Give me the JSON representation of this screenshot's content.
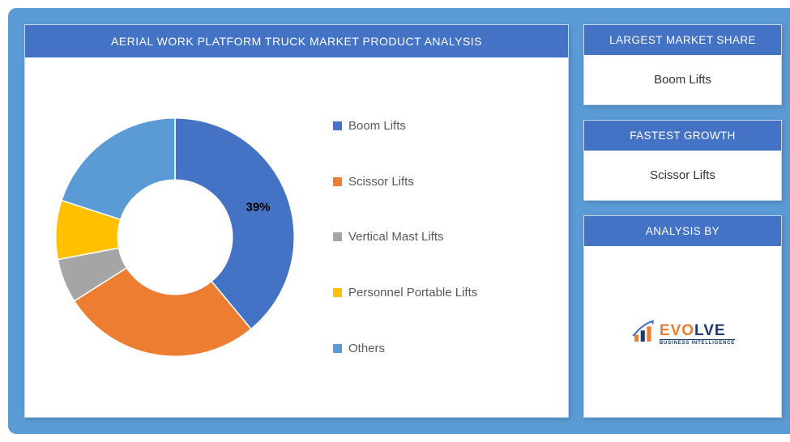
{
  "main": {
    "title": "AERIAL WORK PLATFORM TRUCK MARKET PRODUCT ANALYSIS",
    "chart": {
      "type": "donut",
      "background_color": "#ffffff",
      "inner_radius_ratio": 0.48,
      "start_angle_deg": 0,
      "slices": [
        {
          "label": "Boom Lifts",
          "value": 39,
          "color": "#4472c4",
          "show_label": true,
          "label_text": "39%"
        },
        {
          "label": "Scissor Lifts",
          "value": 27,
          "color": "#ed7d31",
          "show_label": false
        },
        {
          "label": "Vertical Mast Lifts",
          "value": 6,
          "color": "#a5a5a5",
          "show_label": false
        },
        {
          "label": "Personnel Portable Lifts",
          "value": 8,
          "color": "#ffc000",
          "show_label": false
        },
        {
          "label": "Others",
          "value": 20,
          "color": "#5b9bd5",
          "show_label": false
        }
      ],
      "label_fontsize": 15,
      "label_color": "#000000",
      "legend_fontsize": 15,
      "legend_color": "#595959",
      "slice_gap_deg": 0
    }
  },
  "side": {
    "cards": [
      {
        "header": "LARGEST MARKET SHARE",
        "value": "Boom Lifts"
      },
      {
        "header": "FASTEST GROWTH",
        "value": "Scissor Lifts"
      }
    ],
    "analysis": {
      "header": "ANALYSIS BY",
      "brand_main": "EVOLVE",
      "brand_sub": "BUSINESS INTELLIGENCE",
      "brand_color_1": "#ed7d31",
      "brand_color_2": "#1a3a6e",
      "arrow_color": "#4472c4"
    }
  },
  "layout": {
    "canvas_bg": "#5b9bd5",
    "header_bg": "#4472c4",
    "header_color": "#ffffff",
    "card_border": "#c5d9ed"
  }
}
